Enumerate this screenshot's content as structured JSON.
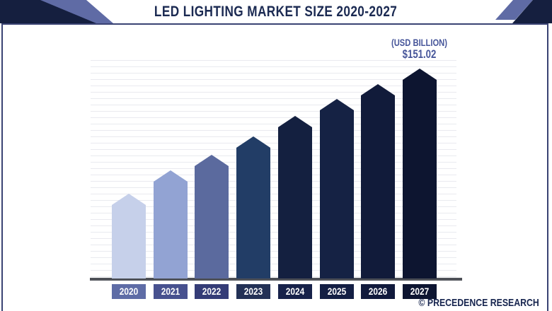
{
  "header": {
    "title": "LED LIGHTING MARKET SIZE 2020-2027"
  },
  "annotation": {
    "unit_label": "(USD BILLION)",
    "value_label": "$151.02"
  },
  "footer": {
    "watermark": "© PRECEDENCE RESEARCH"
  },
  "chart_data": {
    "type": "bar",
    "title": "LED Lighting Market Size 2020-2027",
    "ylabel": "USD Billion",
    "xlabel": "",
    "categories": [
      "2020",
      "2021",
      "2022",
      "2023",
      "2024",
      "2025",
      "2026",
      "2027"
    ],
    "values": [
      61,
      78,
      89,
      102,
      117,
      129,
      140,
      151.02
    ],
    "labeled_points": [
      {
        "category": "2027",
        "label": "$151.02"
      }
    ],
    "value_note": "Only the 2027 bar is labeled on the chart ($151.02); other values estimated from bar heights",
    "ylim": [
      0,
      151.02
    ],
    "grid": "horizontal-light",
    "legend": "none",
    "bar_shape": "pentagon-pointed-top",
    "bar_colors": [
      "#c6d0ea",
      "#92a3d3",
      "#5b6a9e",
      "#223d66",
      "#142040",
      "#152244",
      "#111b3a",
      "#0d1530"
    ],
    "axis_label_colors": [
      "#5e6ca6",
      "#47518f",
      "#343c77",
      "#233156",
      "#17224a",
      "#141f44",
      "#111a3c",
      "#0d1531"
    ]
  },
  "colors": {
    "background": "#ffffff",
    "title": "#1b2a52",
    "annotation": "#47569a",
    "watermark": "#16244e",
    "axis_line": "#4e5158",
    "gridline": "#e9eaef",
    "frame_border": "#3a4373",
    "corner_dark": "#151f3f",
    "corner_light": "#5f6ba5",
    "year_text": "#ffffff"
  }
}
